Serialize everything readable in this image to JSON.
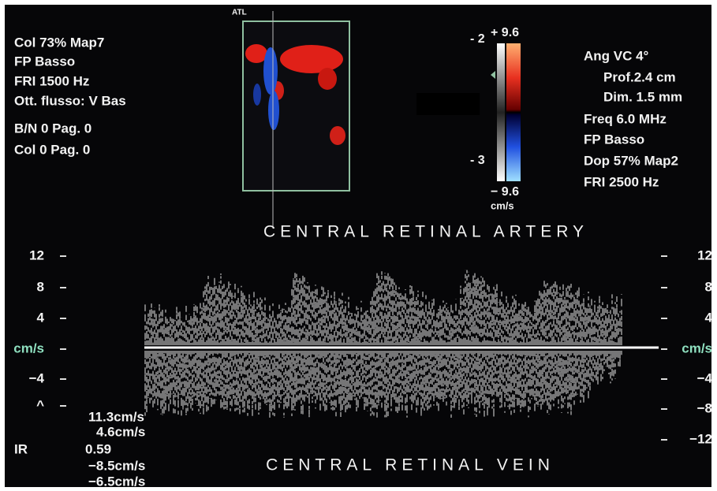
{
  "header": {
    "brand": "ATL"
  },
  "left_panel": {
    "lines": [
      "Col 73%  Map7",
      "FP Basso",
      "FRI 1500  Hz",
      "Ott. flusso: V Bas",
      "B/N 0     Pag. 0",
      "Col 0     Pag. 0"
    ]
  },
  "right_panel": {
    "lines": [
      "Ang VC 4°",
      "Prof.2.4  cm",
      "Dim. 1.5  mm",
      "Freq 6.0  MHz",
      "FP Basso",
      "Dop 57%  Map2",
      "FRI 2500  Hz"
    ]
  },
  "color_bar": {
    "top": "+ 9.6",
    "bottom": "− 9.6",
    "unit": "cm/s",
    "mark_upper": "- 2",
    "mark_lower": "- 3"
  },
  "spectrum": {
    "artery_label": "CENTRAL RETINAL ARTERY",
    "vein_label": "CENTRAL RETINAL VEIN",
    "left_scale": [
      "12",
      "8",
      "4",
      "cm/s",
      "−4",
      "^"
    ],
    "right_scale": [
      "12",
      "8",
      "4",
      "cm/s",
      "−4",
      "−8",
      "−12"
    ]
  },
  "measurements": {
    "peak": "11.3cm/s",
    "diastolic": "4.6cm/s",
    "ir_label": "IR",
    "ir_value": "0.59",
    "vein_peak": "−8.5cm/s",
    "vein_min": "−6.5cm/s"
  }
}
